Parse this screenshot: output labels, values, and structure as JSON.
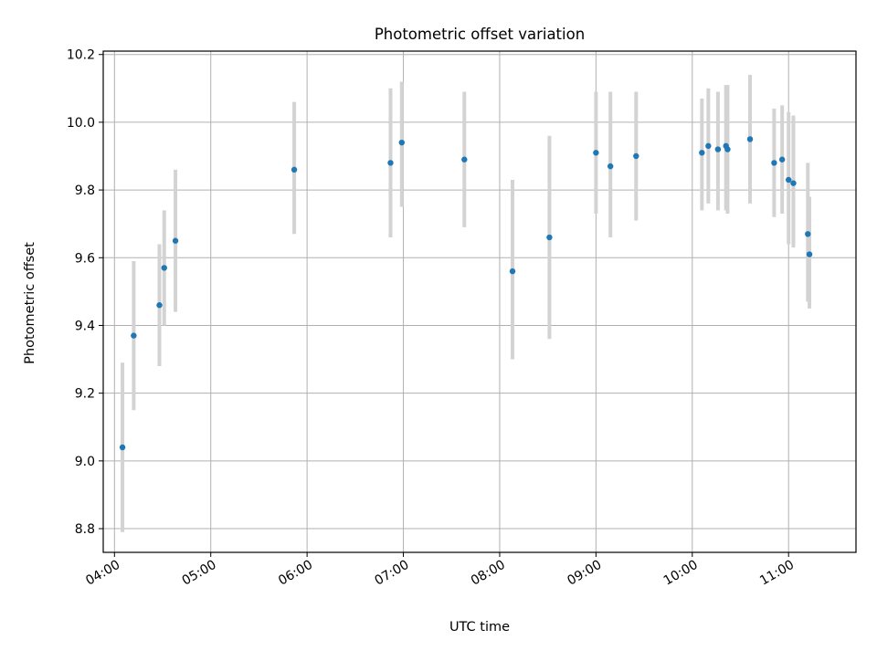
{
  "chart_data": {
    "type": "scatter",
    "title": "Photometric offset variation",
    "xlabel": "UTC time",
    "ylabel": "Photometric offset",
    "x_axis_kind": "time",
    "xlim": [
      "03:53",
      "11:42"
    ],
    "ylim": [
      8.73,
      10.21
    ],
    "x_ticks": [
      "04:00",
      "05:00",
      "06:00",
      "07:00",
      "08:00",
      "09:00",
      "10:00",
      "11:00"
    ],
    "y_ticks": [
      "8.8",
      "9.0",
      "9.2",
      "9.4",
      "9.6",
      "9.8",
      "10.0",
      "10.2"
    ],
    "grid": true,
    "legend": "none",
    "colors": {
      "point": "#1f77b4",
      "errorbar": "#d3d3d3",
      "grid": "#b0b0b0"
    },
    "series": [
      {
        "points": [
          {
            "x": "04:05",
            "y": 9.04,
            "low": 8.79,
            "high": 9.29
          },
          {
            "x": "04:12",
            "y": 9.37,
            "low": 9.15,
            "high": 9.59
          },
          {
            "x": "04:28",
            "y": 9.46,
            "low": 9.28,
            "high": 9.64
          },
          {
            "x": "04:31",
            "y": 9.57,
            "low": 9.4,
            "high": 9.74
          },
          {
            "x": "04:38",
            "y": 9.65,
            "low": 9.44,
            "high": 9.86
          },
          {
            "x": "05:52",
            "y": 9.86,
            "low": 9.67,
            "high": 10.06
          },
          {
            "x": "06:52",
            "y": 9.88,
            "low": 9.66,
            "high": 10.1
          },
          {
            "x": "06:59",
            "y": 9.94,
            "low": 9.75,
            "high": 10.12
          },
          {
            "x": "07:38",
            "y": 9.89,
            "low": 9.69,
            "high": 10.09
          },
          {
            "x": "08:08",
            "y": 9.56,
            "low": 9.3,
            "high": 9.83
          },
          {
            "x": "08:31",
            "y": 9.66,
            "low": 9.36,
            "high": 9.96
          },
          {
            "x": "09:00",
            "y": 9.91,
            "low": 9.73,
            "high": 10.09
          },
          {
            "x": "09:09",
            "y": 9.87,
            "low": 9.66,
            "high": 10.09
          },
          {
            "x": "09:25",
            "y": 9.9,
            "low": 9.71,
            "high": 10.09
          },
          {
            "x": "10:06",
            "y": 9.91,
            "low": 9.74,
            "high": 10.07
          },
          {
            "x": "10:10",
            "y": 9.93,
            "low": 9.76,
            "high": 10.1
          },
          {
            "x": "10:16",
            "y": 9.92,
            "low": 9.74,
            "high": 10.09
          },
          {
            "x": "10:21",
            "y": 9.93,
            "low": 9.74,
            "high": 10.11
          },
          {
            "x": "10:22",
            "y": 9.92,
            "low": 9.73,
            "high": 10.11
          },
          {
            "x": "10:36",
            "y": 9.95,
            "low": 9.76,
            "high": 10.14
          },
          {
            "x": "10:51",
            "y": 9.88,
            "low": 9.72,
            "high": 10.04
          },
          {
            "x": "10:56",
            "y": 9.89,
            "low": 9.73,
            "high": 10.05
          },
          {
            "x": "11:00",
            "y": 9.83,
            "low": 9.64,
            "high": 10.03
          },
          {
            "x": "11:03",
            "y": 9.82,
            "low": 9.63,
            "high": 10.02
          },
          {
            "x": "11:12",
            "y": 9.67,
            "low": 9.47,
            "high": 9.88
          },
          {
            "x": "11:13",
            "y": 9.61,
            "low": 9.45,
            "high": 9.78
          }
        ]
      }
    ]
  }
}
